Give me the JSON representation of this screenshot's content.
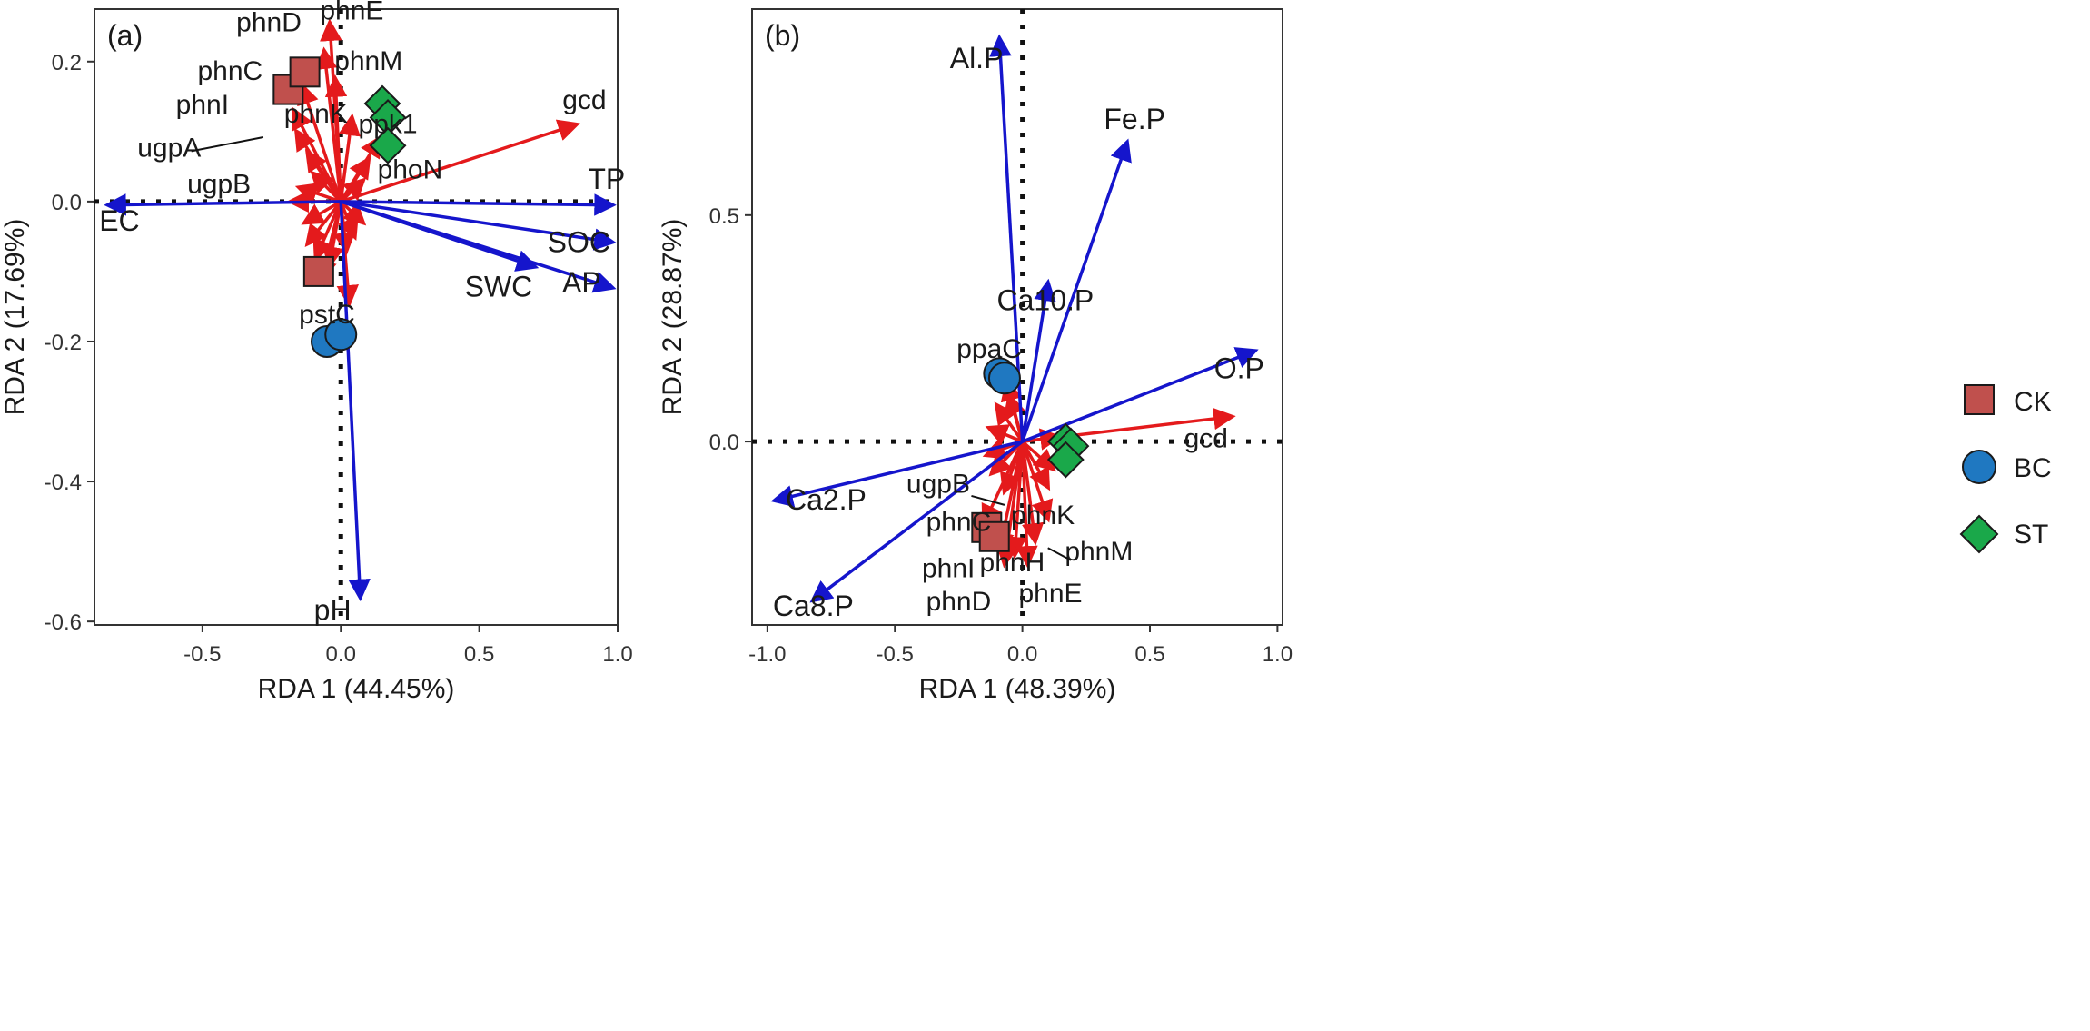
{
  "figure": {
    "background": "#ffffff"
  },
  "colors": {
    "species_arrow": "#e41a1c",
    "env_arrow": "#1515cc",
    "CK": "#c0504d",
    "BC": "#1f78c1",
    "ST": "#1aa84a",
    "frame": "#333333",
    "text": "#1a1a1a"
  },
  "legend": {
    "position": "right",
    "items": [
      {
        "label": "CK",
        "shape": "square"
      },
      {
        "label": "BC",
        "shape": "circle"
      },
      {
        "label": "ST",
        "shape": "diamond"
      }
    ]
  },
  "chart_data": [
    {
      "type": "scatter",
      "title": "(a)",
      "xlabel": "RDA 1 (44.45%)",
      "ylabel": "RDA 2 (17.69%)",
      "xlim": [
        -0.89,
        1.0
      ],
      "ylim": [
        -0.605,
        0.275
      ],
      "xticks": [
        -0.5,
        0.0,
        0.5,
        1.0
      ],
      "xtick_labels": [
        "-0.5",
        "0.0",
        "0.5",
        "1.0"
      ],
      "yticks": [
        -0.6,
        -0.4,
        -0.2,
        0.0,
        0.2
      ],
      "ytick_labels": [
        "-0.6",
        "-0.4",
        "-0.2",
        "0.0",
        "0.2"
      ],
      "env_vectors": [
        {
          "label": "EC",
          "x": -0.84,
          "y": -0.005,
          "lx": -0.8,
          "ly": -0.042
        },
        {
          "label": "TP",
          "x": 0.98,
          "y": -0.005,
          "lx": 0.96,
          "ly": 0.018
        },
        {
          "label": "SOC",
          "x": 0.98,
          "y": -0.058,
          "lx": 0.86,
          "ly": -0.072
        },
        {
          "label": "AP",
          "x": 0.98,
          "y": -0.123,
          "lx": 0.87,
          "ly": -0.13
        },
        {
          "label": "SWC",
          "x": 0.7,
          "y": -0.093,
          "lx": 0.57,
          "ly": -0.136
        },
        {
          "label": "pH",
          "x": 0.07,
          "y": -0.565,
          "lx": -0.03,
          "ly": -0.598
        }
      ],
      "species_vectors": [
        {
          "label": "gcd",
          "x": 0.85,
          "y": 0.11,
          "lx": 0.88,
          "ly": 0.132
        },
        {
          "label": "phnE",
          "x": -0.04,
          "y": 0.255,
          "lx": 0.04,
          "ly": 0.26
        },
        {
          "label": "phnD",
          "x": -0.06,
          "y": 0.215,
          "lx": -0.26,
          "ly": 0.243
        },
        {
          "label": "phnC",
          "x": -0.14,
          "y": 0.165,
          "lx": -0.4,
          "ly": 0.174
        },
        {
          "label": "phnM",
          "x": -0.02,
          "y": 0.175,
          "lx": 0.1,
          "ly": 0.188
        },
        {
          "label": "phnI",
          "x": -0.17,
          "y": 0.13,
          "lx": -0.5,
          "ly": 0.126
        },
        {
          "label": "phnK",
          "x": -0.16,
          "y": 0.1,
          "lx": -0.09,
          "ly": 0.113
        },
        {
          "label": "ugpA",
          "x": -0.12,
          "y": 0.07,
          "lx": -0.62,
          "ly": 0.064
        },
        {
          "label": "ppk1",
          "x": 0.14,
          "y": 0.09,
          "lx": 0.17,
          "ly": 0.098
        },
        {
          "label": "phoN",
          "x": 0.1,
          "y": 0.06,
          "lx": 0.25,
          "ly": 0.033
        },
        {
          "label": "ugpB",
          "x": -0.18,
          "y": 0.0,
          "lx": -0.44,
          "ly": 0.012
        },
        {
          "label": "pstC",
          "x": 0.03,
          "y": -0.145,
          "lx": -0.05,
          "ly": -0.174
        },
        {
          "label": "",
          "x": -0.12,
          "y": -0.06
        },
        {
          "label": "",
          "x": -0.09,
          "y": -0.08
        },
        {
          "label": "",
          "x": -0.07,
          "y": -0.11
        },
        {
          "label": "",
          "x": -0.04,
          "y": -0.09
        },
        {
          "label": "",
          "x": 0.02,
          "y": -0.07
        },
        {
          "label": "",
          "x": 0.05,
          "y": -0.05
        },
        {
          "label": "",
          "x": -0.13,
          "y": -0.03
        },
        {
          "label": "",
          "x": 0.08,
          "y": -0.03
        },
        {
          "label": "",
          "x": 0.08,
          "y": 0.03
        },
        {
          "label": "",
          "x": -0.1,
          "y": 0.04
        },
        {
          "label": "",
          "x": 0.04,
          "y": 0.12
        },
        {
          "label": "",
          "x": -0.15,
          "y": 0.02
        }
      ],
      "points": {
        "CK": [
          {
            "x": -0.19,
            "y": 0.16
          },
          {
            "x": -0.13,
            "y": 0.185
          },
          {
            "x": -0.08,
            "y": -0.1
          }
        ],
        "BC": [
          {
            "x": -0.05,
            "y": -0.2
          },
          {
            "x": 0.0,
            "y": -0.19
          }
        ],
        "ST": [
          {
            "x": 0.15,
            "y": 0.14
          },
          {
            "x": 0.17,
            "y": 0.12
          },
          {
            "x": 0.17,
            "y": 0.08
          }
        ]
      }
    },
    {
      "type": "scatter",
      "title": "(b)",
      "xlabel": "RDA 1 (48.39%)",
      "ylabel": "RDA 2 (28.87%)",
      "xlim": [
        -1.06,
        1.02
      ],
      "ylim": [
        -0.405,
        0.955
      ],
      "xticks": [
        -1.0,
        -0.5,
        0.0,
        0.5,
        1.0
      ],
      "xtick_labels": [
        "-1.0",
        "-0.5",
        "0.0",
        "0.5",
        "1.0"
      ],
      "yticks": [
        0.0,
        0.5
      ],
      "ytick_labels": [
        "0.0",
        "0.5"
      ],
      "env_vectors": [
        {
          "label": "Al.P",
          "x": -0.09,
          "y": 0.89,
          "lx": -0.18,
          "ly": 0.825
        },
        {
          "label": "Fe.P",
          "x": 0.41,
          "y": 0.66,
          "lx": 0.44,
          "ly": 0.69
        },
        {
          "label": "Ca10.P",
          "x": 0.1,
          "y": 0.35,
          "lx": 0.09,
          "ly": 0.29
        },
        {
          "label": "O.P",
          "x": 0.91,
          "y": 0.2,
          "lx": 0.85,
          "ly": 0.14
        },
        {
          "label": "Ca2.P",
          "x": -0.97,
          "y": -0.13,
          "lx": -0.77,
          "ly": -0.15
        },
        {
          "label": "Ca8.P",
          "x": -0.82,
          "y": -0.35,
          "lx": -0.82,
          "ly": -0.385
        }
      ],
      "species_vectors": [
        {
          "label": "gcd",
          "x": 0.82,
          "y": 0.055,
          "lx": 0.72,
          "ly": -0.013
        },
        {
          "label": "ppaC",
          "x": -0.06,
          "y": 0.13,
          "lx": -0.13,
          "ly": 0.185
        },
        {
          "label": "ugpB",
          "x": -0.07,
          "y": -0.11,
          "lx": -0.33,
          "ly": -0.113
        },
        {
          "label": "phnC",
          "x": -0.15,
          "y": -0.18,
          "lx": -0.25,
          "ly": -0.197
        },
        {
          "label": "phnK",
          "x": 0.1,
          "y": -0.17,
          "lx": 0.08,
          "ly": -0.182
        },
        {
          "label": "phnM",
          "x": 0.05,
          "y": -0.22,
          "lx": 0.3,
          "ly": -0.263
        },
        {
          "label": "phnI",
          "x": -0.09,
          "y": -0.24,
          "lx": -0.29,
          "ly": -0.3
        },
        {
          "label": "phnH",
          "x": -0.03,
          "y": -0.25,
          "lx": -0.04,
          "ly": -0.287
        },
        {
          "label": "phnD",
          "x": -0.07,
          "y": -0.27,
          "lx": -0.25,
          "ly": -0.373
        },
        {
          "label": "phnE",
          "x": 0.02,
          "y": -0.27,
          "lx": 0.11,
          "ly": -0.355
        },
        {
          "label": "",
          "x": -0.1,
          "y": 0.08
        },
        {
          "label": "",
          "x": -0.13,
          "y": 0.03
        },
        {
          "label": "",
          "x": -0.14,
          "y": -0.03
        },
        {
          "label": "",
          "x": -0.12,
          "y": -0.07
        },
        {
          "label": "",
          "x": 0.12,
          "y": -0.06
        },
        {
          "label": "",
          "x": 0.14,
          "y": 0.01
        },
        {
          "label": "",
          "x": 0.1,
          "y": -0.1
        },
        {
          "label": "",
          "x": -0.05,
          "y": 0.1
        }
      ],
      "points": {
        "CK": [
          {
            "x": -0.14,
            "y": -0.19
          },
          {
            "x": -0.11,
            "y": -0.21
          }
        ],
        "BC": [
          {
            "x": -0.09,
            "y": 0.15
          },
          {
            "x": -0.07,
            "y": 0.14
          }
        ],
        "ST": [
          {
            "x": 0.17,
            "y": 0.0
          },
          {
            "x": 0.19,
            "y": -0.01
          },
          {
            "x": 0.17,
            "y": -0.04
          }
        ]
      }
    }
  ]
}
